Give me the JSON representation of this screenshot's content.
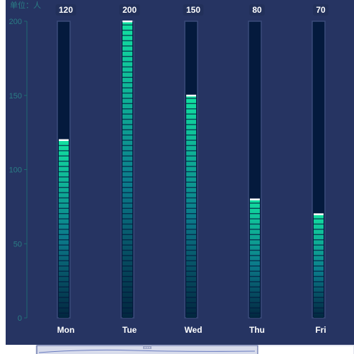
{
  "chart_data": {
    "type": "bar",
    "unit_label": "单位：人",
    "categories": [
      "Mon",
      "Tue",
      "Wed",
      "Thu",
      "Fri"
    ],
    "values": [
      120,
      200,
      150,
      80,
      70
    ],
    "ylim": [
      0,
      200
    ],
    "y_ticks": [
      "0",
      "50",
      "100",
      "150",
      "200"
    ],
    "value_labels": [
      "120",
      "200",
      "150",
      "80",
      "70"
    ],
    "grid": false,
    "colors": {
      "background": "#263462",
      "axis": "#1f6a72",
      "tick_label": "#2a7d85",
      "track": "#041a3d",
      "track_border": "#3a4b7a",
      "fill_top": "#12e0a0",
      "fill_bottom": "#02263e",
      "cap": "#ffffff",
      "label": "#ffffff",
      "value_pill": "#22305a"
    }
  },
  "datazoom": {
    "handle_icon": "grip-icon",
    "range": [
      0,
      0.62
    ]
  }
}
